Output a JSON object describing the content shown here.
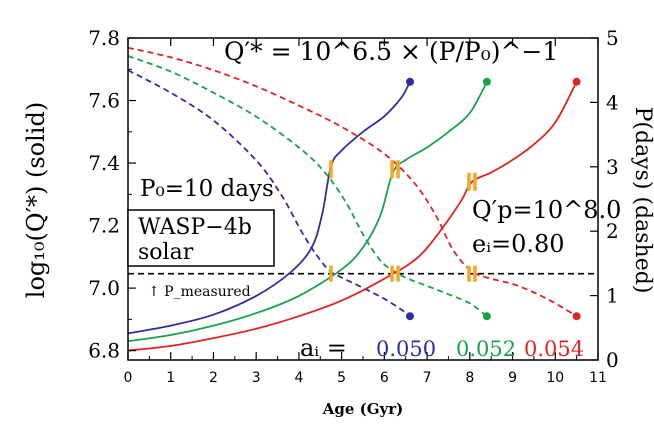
{
  "chart_data": {
    "type": "line",
    "xlabel": "Age (Gyr)",
    "ylabel_left": "log₁₀(Q′*)   (solid)",
    "ylabel_right": "P(days)   (dashed)",
    "xlim": [
      0,
      11
    ],
    "ylim_left": [
      6.77,
      7.8
    ],
    "ylim_right": [
      0,
      5
    ],
    "x_ticks": [
      "0",
      "1",
      "2",
      "3",
      "4",
      "5",
      "6",
      "7",
      "8",
      "9",
      "10",
      "11"
    ],
    "y_left_ticks": [
      "6.8",
      "7.0",
      "7.2",
      "7.4",
      "7.6",
      "7.8"
    ],
    "y_right_ticks": [
      "0",
      "1",
      "2",
      "3",
      "4",
      "5"
    ],
    "formula": "Q′* = 10^6.5 × (P/P₀)^−1",
    "annotations": {
      "p0": "P₀=10 days",
      "box_line1": "WASP−4b",
      "box_line2": "solar",
      "p_measured": "↑ P_measured",
      "qp": "Q′p=10^8.0",
      "ei": "eᵢ=0.80",
      "ai_label": "aᵢ ="
    },
    "p_measured_days": 1.34,
    "series": [
      {
        "name": "0.050",
        "color": "#2e2ea3",
        "end_age": 6.6,
        "solid": [
          [
            0,
            6.855
          ],
          [
            1,
            6.88
          ],
          [
            2,
            6.915
          ],
          [
            3,
            6.975
          ],
          [
            3.8,
            7.05
          ],
          [
            4.3,
            7.13
          ],
          [
            4.55,
            7.24
          ],
          [
            4.75,
            7.39
          ],
          [
            5.0,
            7.44
          ],
          [
            5.5,
            7.5
          ],
          [
            6.0,
            7.55
          ],
          [
            6.4,
            7.61
          ],
          [
            6.6,
            7.66
          ]
        ],
        "dashed": [
          [
            0,
            4.5
          ],
          [
            1,
            4.15
          ],
          [
            2,
            3.72
          ],
          [
            3,
            3.1
          ],
          [
            3.6,
            2.55
          ],
          [
            4.1,
            1.95
          ],
          [
            4.5,
            1.55
          ],
          [
            4.75,
            1.37
          ],
          [
            5.0,
            1.28
          ],
          [
            5.5,
            1.12
          ],
          [
            6.0,
            0.95
          ],
          [
            6.4,
            0.78
          ],
          [
            6.6,
            0.68
          ]
        ]
      },
      {
        "name": "0.052",
        "color": "#16a34a",
        "end_age": 8.4,
        "solid": [
          [
            0,
            6.83
          ],
          [
            1,
            6.85
          ],
          [
            2,
            6.88
          ],
          [
            3,
            6.92
          ],
          [
            4,
            6.975
          ],
          [
            5,
            7.06
          ],
          [
            5.5,
            7.13
          ],
          [
            5.9,
            7.23
          ],
          [
            6.2,
            7.37
          ],
          [
            6.5,
            7.41
          ],
          [
            7.0,
            7.45
          ],
          [
            7.5,
            7.5
          ],
          [
            8.0,
            7.56
          ],
          [
            8.4,
            7.66
          ]
        ],
        "dashed": [
          [
            0,
            4.72
          ],
          [
            1,
            4.48
          ],
          [
            2,
            4.15
          ],
          [
            3,
            3.78
          ],
          [
            4,
            3.3
          ],
          [
            4.6,
            2.92
          ],
          [
            5.1,
            2.45
          ],
          [
            5.5,
            1.95
          ],
          [
            5.9,
            1.55
          ],
          [
            6.25,
            1.37
          ],
          [
            6.6,
            1.25
          ],
          [
            7.0,
            1.15
          ],
          [
            7.5,
            1.02
          ],
          [
            8.0,
            0.88
          ],
          [
            8.4,
            0.68
          ]
        ]
      },
      {
        "name": "0.054",
        "color": "#e02424",
        "end_age": 10.5,
        "solid": [
          [
            0,
            6.8
          ],
          [
            1,
            6.815
          ],
          [
            2,
            6.84
          ],
          [
            3,
            6.87
          ],
          [
            4,
            6.91
          ],
          [
            5,
            6.96
          ],
          [
            6,
            7.03
          ],
          [
            6.8,
            7.1
          ],
          [
            7.4,
            7.2
          ],
          [
            7.8,
            7.28
          ],
          [
            8.05,
            7.34
          ],
          [
            8.5,
            7.37
          ],
          [
            9,
            7.41
          ],
          [
            9.5,
            7.46
          ],
          [
            10,
            7.53
          ],
          [
            10.5,
            7.66
          ]
        ],
        "dashed": [
          [
            0,
            4.85
          ],
          [
            1,
            4.7
          ],
          [
            2,
            4.5
          ],
          [
            3,
            4.25
          ],
          [
            4,
            3.95
          ],
          [
            5,
            3.62
          ],
          [
            6,
            3.2
          ],
          [
            6.7,
            2.75
          ],
          [
            7.2,
            2.25
          ],
          [
            7.6,
            1.72
          ],
          [
            8.0,
            1.4
          ],
          [
            8.4,
            1.28
          ],
          [
            9,
            1.18
          ],
          [
            9.5,
            1.05
          ],
          [
            10,
            0.88
          ],
          [
            10.5,
            0.68
          ]
        ]
      }
    ],
    "markers": [
      {
        "color": "#f5a623",
        "age": 4.75,
        "y_left": 7.38,
        "period": 1.34,
        "count": 1
      },
      {
        "color": "#f5a623",
        "age": 6.25,
        "y_left": 7.38,
        "period": 1.34,
        "count": 2
      },
      {
        "color": "#f5a623",
        "age": 8.05,
        "y_left": 7.34,
        "period": 1.34,
        "count": 2
      }
    ]
  }
}
